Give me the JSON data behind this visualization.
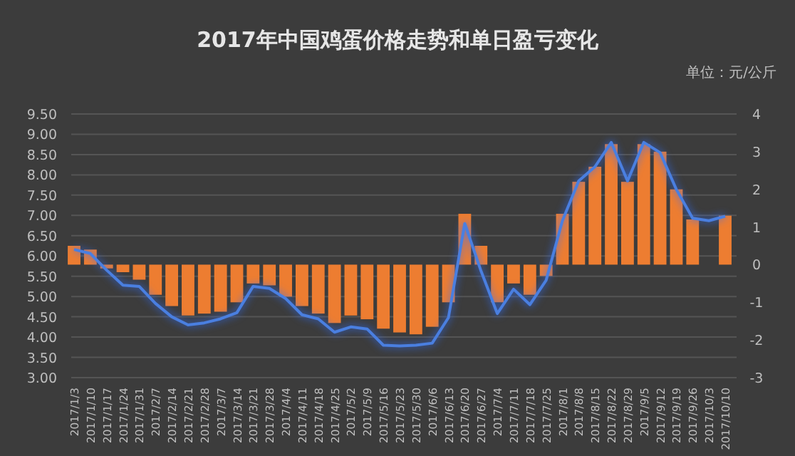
{
  "chart_data": {
    "type": "bar",
    "title": "2017年中国鸡蛋价格走势和单日盈亏变化",
    "annotations": [
      "单位：元/公斤"
    ],
    "categories": [
      "2017/1/3",
      "2017/1/10",
      "2017/1/17",
      "2017/1/24",
      "2017/1/31",
      "2017/2/7",
      "2017/2/14",
      "2017/2/21",
      "2017/2/28",
      "2017/3/7",
      "2017/3/14",
      "2017/3/21",
      "2017/3/28",
      "2017/4/4",
      "2017/4/11",
      "2017/4/18",
      "2017/4/25",
      "2017/5/2",
      "2017/5/9",
      "2017/5/16",
      "2017/5/23",
      "2017/5/30",
      "2017/6/6",
      "2017/6/13",
      "2017/6/20",
      "2017/6/27",
      "2017/7/4",
      "2017/7/11",
      "2017/7/18",
      "2017/7/25",
      "2017/8/1",
      "2017/8/8",
      "2017/8/15",
      "2017/8/22",
      "2017/8/29",
      "2017/9/5",
      "2017/9/12",
      "2017/9/19",
      "2017/9/26",
      "2017/10/3",
      "2017/10/10"
    ],
    "series": [
      {
        "axis": "y2",
        "color": "#ed7d31",
        "values": [
          0.5,
          0.4,
          -0.1,
          -0.2,
          -0.4,
          -0.8,
          -1.1,
          -1.35,
          -1.3,
          -1.25,
          -1.0,
          -0.5,
          -0.55,
          -0.85,
          -1.1,
          -1.3,
          -1.55,
          -1.35,
          -1.45,
          -1.7,
          -1.8,
          -1.85,
          -1.65,
          -1.0,
          1.35,
          0.5,
          -1.0,
          -0.5,
          -0.8,
          -0.3,
          1.35,
          2.2,
          2.6,
          3.2,
          2.2,
          3.2,
          3.0,
          2.0,
          1.2,
          null,
          1.3
        ]
      },
      {
        "type": "line",
        "axis": "y",
        "color": "#4a7fe0",
        "values": [
          6.16,
          6.06,
          5.65,
          5.28,
          5.25,
          4.83,
          4.5,
          4.3,
          4.35,
          4.45,
          4.6,
          5.25,
          5.2,
          4.95,
          4.55,
          4.45,
          4.12,
          4.25,
          4.2,
          3.8,
          3.78,
          3.8,
          3.85,
          4.48,
          6.8,
          5.63,
          4.58,
          5.18,
          4.8,
          5.4,
          6.87,
          7.85,
          8.2,
          8.8,
          7.85,
          8.8,
          8.55,
          7.64,
          6.93,
          6.87,
          6.98
        ]
      }
    ],
    "ylim": [
      3,
      9.5
    ],
    "yticks": [
      {
        "value": 3,
        "label": "3.00"
      },
      {
        "value": 3.5,
        "label": "3.50"
      },
      {
        "value": 4,
        "label": "4.00"
      },
      {
        "value": 4.5,
        "label": "4.50"
      },
      {
        "value": 5,
        "label": "5.00"
      },
      {
        "value": 5.5,
        "label": "5.50"
      },
      {
        "value": 6,
        "label": "6.00"
      },
      {
        "value": 6.5,
        "label": "6.50"
      },
      {
        "value": 7,
        "label": "7.00"
      },
      {
        "value": 7.5,
        "label": "7.50"
      },
      {
        "value": 8,
        "label": "8.00"
      },
      {
        "value": 8.5,
        "label": "8.50"
      },
      {
        "value": 9,
        "label": "9.00"
      },
      {
        "value": 9.5,
        "label": "9.50"
      }
    ],
    "y2lim": [
      -3,
      4
    ],
    "y2ticks": [
      -3,
      -2,
      -1,
      0,
      1,
      2,
      3,
      4
    ],
    "grid": "y"
  }
}
